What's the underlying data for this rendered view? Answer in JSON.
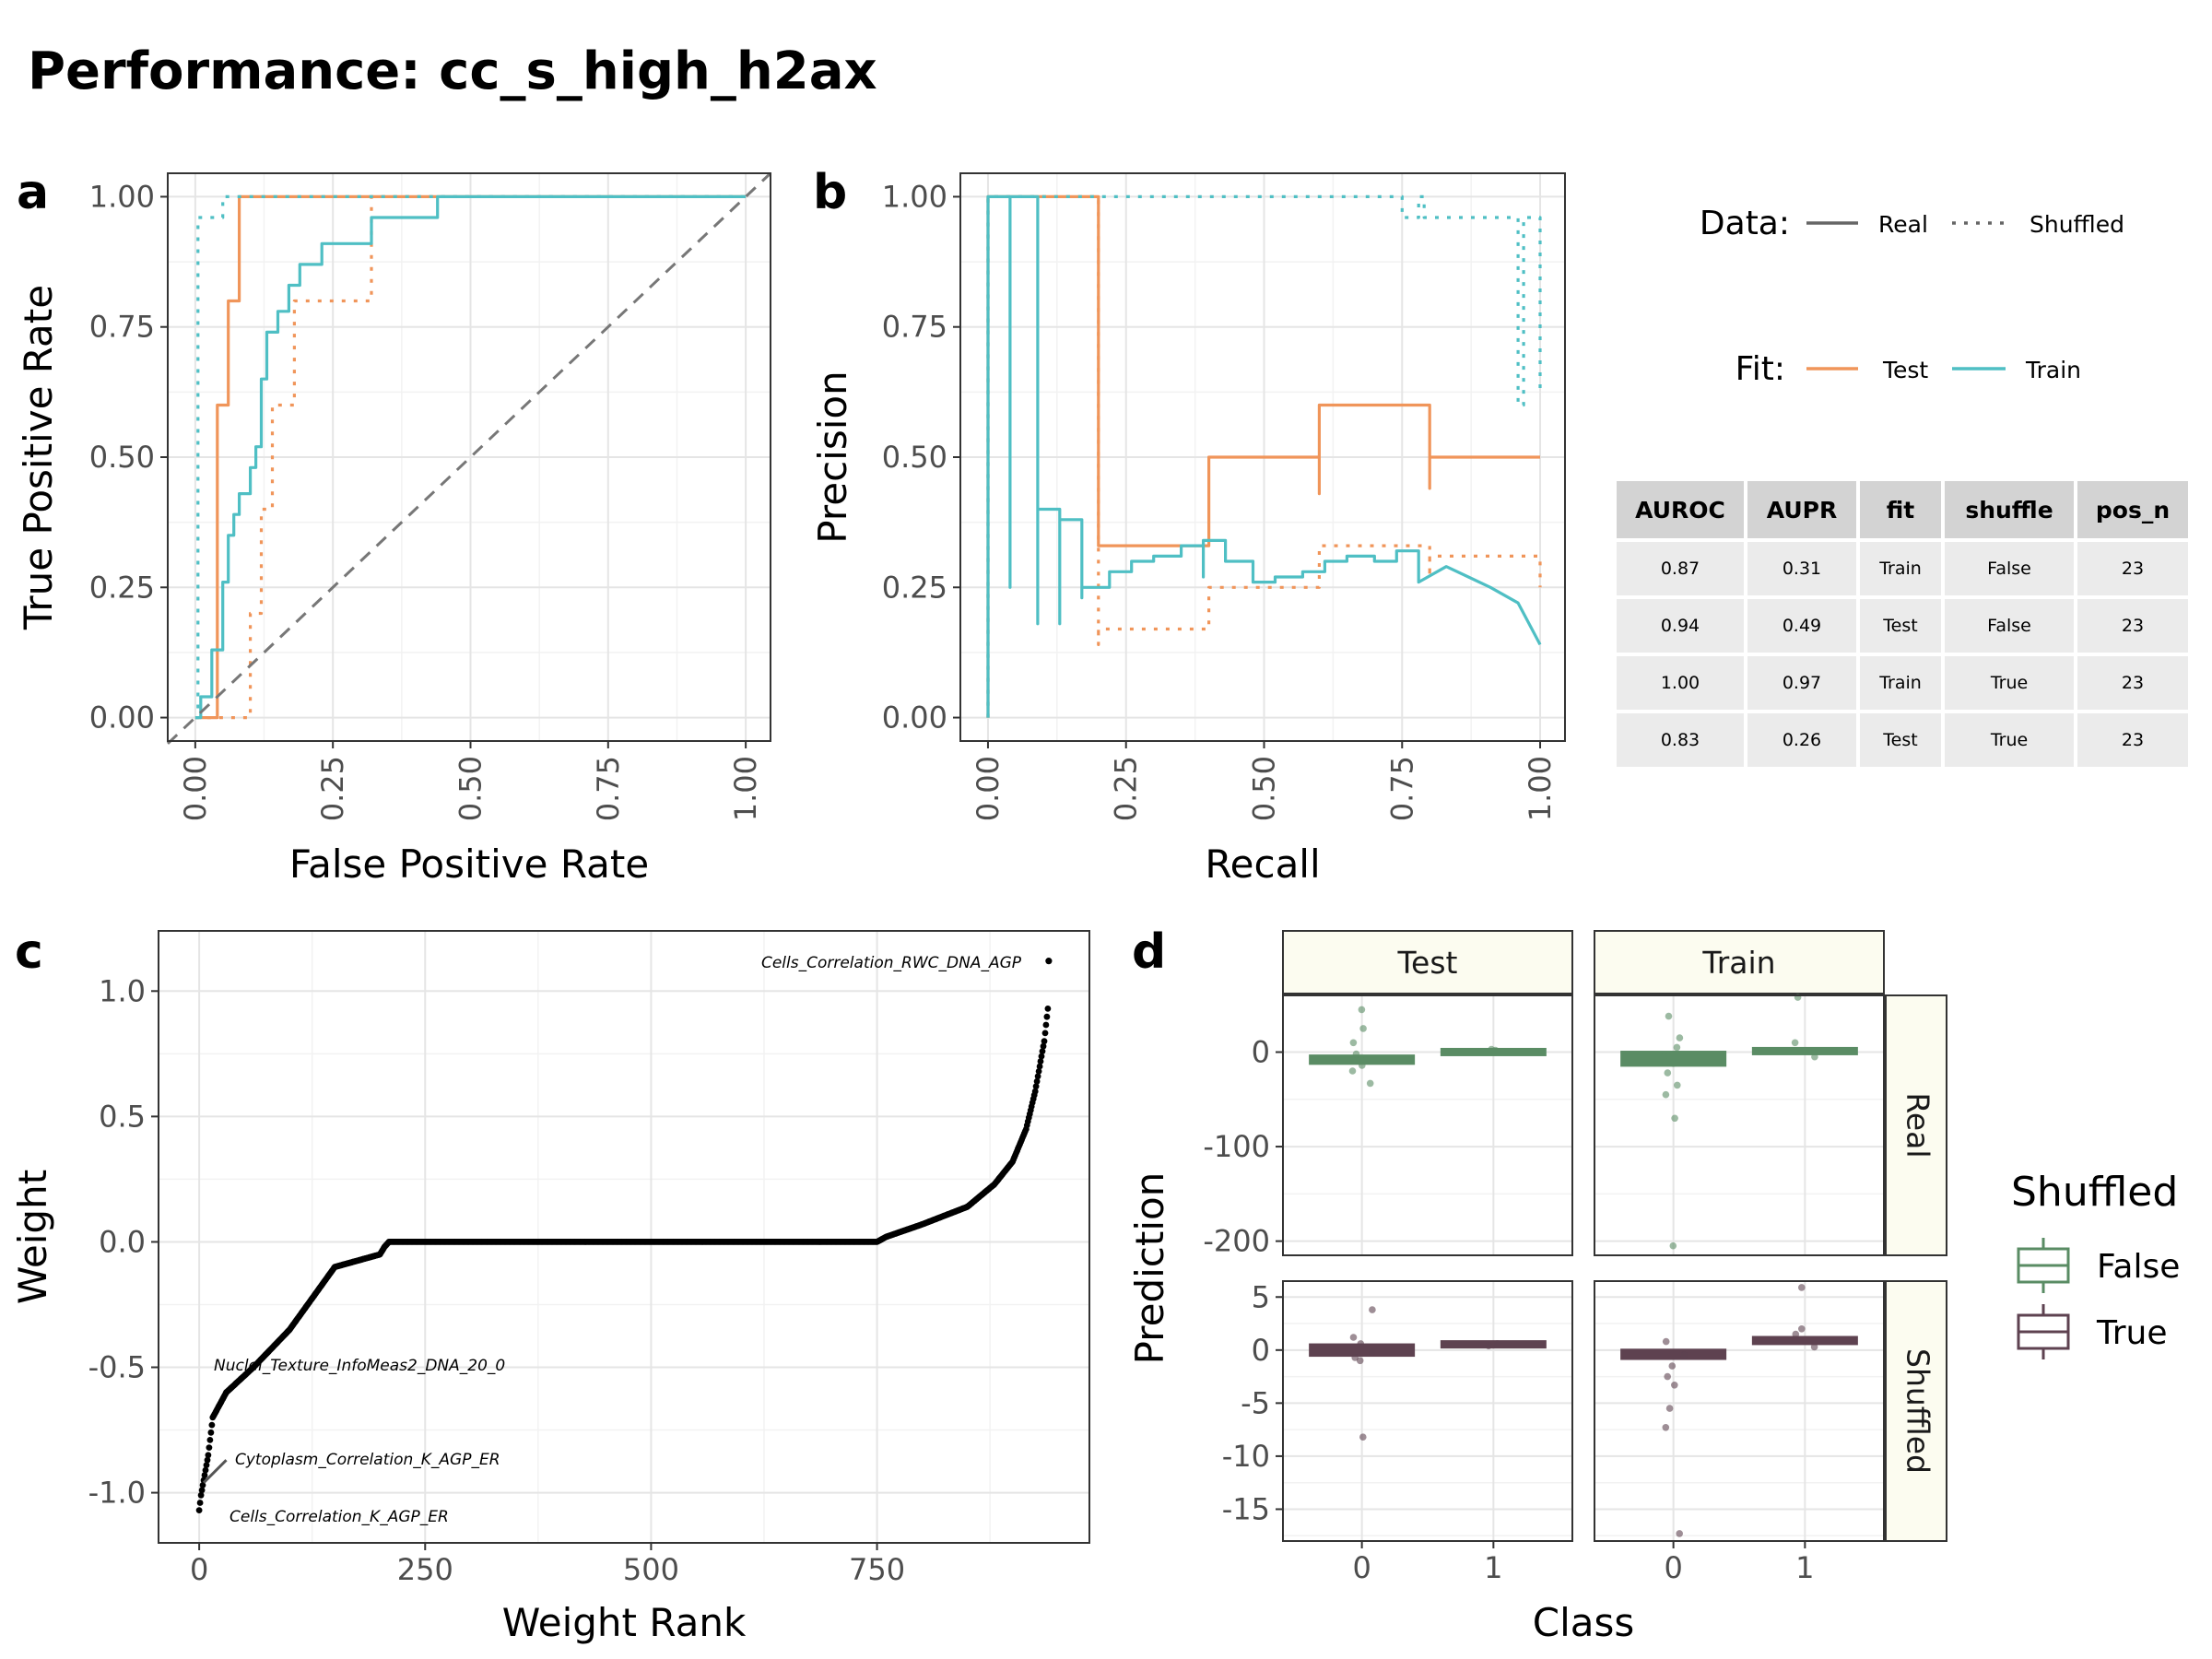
{
  "title": "Performance: cc_s_high_h2ax",
  "colors": {
    "test": "#f0955a",
    "train": "#4fbfc4",
    "false_box": "#5a8c64",
    "true_box": "#5e4250",
    "diag": "#777777"
  },
  "panel_letters": [
    "a",
    "b",
    "c",
    "d"
  ],
  "chart_data": [
    {
      "type": "line",
      "panel": "a",
      "xlabel": "False Positive Rate",
      "ylabel": "True Positive Rate",
      "xlim": [
        0,
        1
      ],
      "ylim": [
        0,
        1
      ],
      "x_ticks": [
        "0.00",
        "0.25",
        "0.50",
        "0.75",
        "1.00"
      ],
      "y_ticks": [
        "0.00",
        "0.25",
        "0.50",
        "0.75",
        "1.00"
      ],
      "series": [
        {
          "name": "Test",
          "data": "Real",
          "x": [
            0,
            0.04,
            0.04,
            0.06,
            0.06,
            0.08,
            0.08,
            0.1,
            0.1,
            1
          ],
          "y": [
            0,
            0,
            0.6,
            0.6,
            0.8,
            0.8,
            1,
            1,
            1,
            1
          ]
        },
        {
          "name": "Test",
          "data": "Shuffled",
          "x": [
            0,
            0.1,
            0.1,
            0.12,
            0.12,
            0.14,
            0.14,
            0.18,
            0.18,
            0.2,
            0.2,
            0.32,
            0.32,
            1
          ],
          "y": [
            0,
            0,
            0.2,
            0.2,
            0.4,
            0.4,
            0.6,
            0.6,
            0.8,
            0.8,
            0.8,
            0.8,
            1,
            1
          ]
        },
        {
          "name": "Train",
          "data": "Real",
          "x": [
            0,
            0.01,
            0.01,
            0.03,
            0.03,
            0.05,
            0.05,
            0.06,
            0.06,
            0.07,
            0.07,
            0.08,
            0.08,
            0.1,
            0.1,
            0.11,
            0.11,
            0.12,
            0.12,
            0.13,
            0.13,
            0.15,
            0.15,
            0.17,
            0.17,
            0.19,
            0.19,
            0.21,
            0.21,
            0.23,
            0.23,
            0.26,
            0.26,
            0.32,
            0.32,
            0.44,
            0.44,
            0.54,
            0.54,
            1
          ],
          "y": [
            0,
            0,
            0.04,
            0.04,
            0.13,
            0.13,
            0.26,
            0.26,
            0.35,
            0.35,
            0.39,
            0.39,
            0.43,
            0.43,
            0.48,
            0.48,
            0.52,
            0.52,
            0.65,
            0.65,
            0.74,
            0.74,
            0.78,
            0.78,
            0.83,
            0.83,
            0.87,
            0.87,
            0.87,
            0.87,
            0.91,
            0.91,
            0.91,
            0.91,
            0.96,
            0.96,
            1,
            1,
            1,
            1
          ]
        },
        {
          "name": "Train",
          "data": "Shuffled",
          "x": [
            0,
            0,
            0.005,
            0.005,
            0.05,
            0.05,
            0.08,
            0.08,
            1
          ],
          "y": [
            0,
            0,
            0,
            0.96,
            0.96,
            1,
            1,
            1,
            1
          ]
        },
        {
          "name": "Diagonal",
          "x": [
            0,
            1
          ],
          "y": [
            0,
            1
          ]
        }
      ]
    },
    {
      "type": "line",
      "panel": "b",
      "xlabel": "Recall",
      "ylabel": "Precision",
      "xlim": [
        0,
        1
      ],
      "ylim": [
        0,
        1
      ],
      "x_ticks": [
        "0.00",
        "0.25",
        "0.50",
        "0.75",
        "1.00"
      ],
      "y_ticks": [
        "0.00",
        "0.25",
        "0.50",
        "0.75",
        "1.00"
      ],
      "series": [
        {
          "name": "Test",
          "data": "Real",
          "x": [
            0,
            0,
            0.2,
            0.2,
            0.4,
            0.4,
            0.6,
            0.6,
            0.6,
            0.8,
            0.8,
            0.8,
            1
          ],
          "y": [
            0,
            1,
            1,
            0.33,
            0.33,
            0.5,
            0.5,
            0.43,
            0.6,
            0.6,
            0.44,
            0.5,
            0.5
          ]
        },
        {
          "name": "Test",
          "data": "Shuffled",
          "x": [
            0,
            0,
            0.2,
            0.2,
            0.2,
            0.4,
            0.4,
            0.4,
            0.6,
            0.6,
            0.8,
            0.8,
            0.8,
            1,
            1
          ],
          "y": [
            0,
            1,
            1,
            0.14,
            0.17,
            0.17,
            0.22,
            0.25,
            0.25,
            0.33,
            0.33,
            0.27,
            0.31,
            0.31,
            0.25
          ]
        },
        {
          "name": "Train",
          "data": "Real",
          "x": [
            0,
            0,
            0.04,
            0.04,
            0.04,
            0.09,
            0.09,
            0.09,
            0.13,
            0.13,
            0.13,
            0.17,
            0.17,
            0.17,
            0.22,
            0.22,
            0.26,
            0.26,
            0.3,
            0.3,
            0.35,
            0.35,
            0.39,
            0.39,
            0.39,
            0.43,
            0.43,
            0.48,
            0.48,
            0.52,
            0.52,
            0.57,
            0.57,
            0.61,
            0.61,
            0.65,
            0.65,
            0.7,
            0.7,
            0.74,
            0.74,
            0.78,
            0.78,
            0.83,
            0.83,
            0.87,
            0.87,
            0.91,
            0.91,
            0.96,
            0.96,
            1
          ],
          "y": [
            0,
            1,
            1,
            0.25,
            1,
            1,
            0.18,
            0.4,
            0.4,
            0.18,
            0.38,
            0.38,
            0.23,
            0.25,
            0.25,
            0.28,
            0.28,
            0.3,
            0.3,
            0.31,
            0.31,
            0.33,
            0.33,
            0.27,
            0.34,
            0.34,
            0.3,
            0.3,
            0.26,
            0.26,
            0.27,
            0.27,
            0.28,
            0.28,
            0.3,
            0.3,
            0.31,
            0.31,
            0.3,
            0.3,
            0.32,
            0.32,
            0.26,
            0.29,
            0.29,
            0.27,
            0.27,
            0.25,
            0.25,
            0.22,
            0.22,
            0.14
          ]
        },
        {
          "name": "Train",
          "data": "Shuffled",
          "x": [
            0,
            0,
            0.75,
            0.75,
            0.78,
            0.78,
            0.79,
            0.79,
            0.96,
            0.96,
            0.97,
            0.97,
            1,
            1
          ],
          "y": [
            0,
            1,
            1,
            0.96,
            0.96,
            1,
            1,
            0.96,
            0.96,
            0.6,
            0.6,
            0.96,
            0.96,
            0.62
          ]
        }
      ]
    },
    {
      "type": "scatter",
      "panel": "c",
      "xlabel": "Weight Rank",
      "ylabel": "Weight",
      "xlim": [
        -45,
        985
      ],
      "ylim": [
        -1.2,
        1.24
      ],
      "x_ticks": [
        "0",
        "250",
        "500",
        "750"
      ],
      "y_ticks": [
        "-1.0",
        "-0.5",
        "0.0",
        "0.5",
        "1.0"
      ],
      "curve_anchors": {
        "x": [
          0,
          2,
          5,
          10,
          15,
          30,
          60,
          100,
          150,
          200,
          205,
          210,
          220,
          750,
          760,
          800,
          850,
          880,
          900,
          915,
          925,
          935,
          939
        ],
        "y": [
          -1.07,
          -1.01,
          -0.95,
          -0.85,
          -0.7,
          -0.6,
          -0.5,
          -0.35,
          -0.1,
          -0.05,
          -0.02,
          0,
          0,
          0,
          0.02,
          0.07,
          0.14,
          0.23,
          0.32,
          0.45,
          0.6,
          0.8,
          0.93
        ]
      },
      "extra_points": [
        {
          "x": 940,
          "y": 1.12
        }
      ],
      "annotations": [
        {
          "text": "Cells_Correlation_RWC_DNA_AGP",
          "x": 925,
          "y": 1.12
        },
        {
          "text": "Nuclei_Texture_InfoMeas2_DNA_20_0",
          "x": 10,
          "y": -0.48
        },
        {
          "text": "Cytoplasm_Correlation_K_AGP_ER",
          "x": 5,
          "y": -0.85
        },
        {
          "text": "Cells_Correlation_K_AGP_ER",
          "x": 0,
          "y": -1.07
        }
      ]
    },
    {
      "type": "box",
      "panel": "d",
      "xlabel": "Class",
      "ylabel": "Prediction",
      "categories": [
        "0",
        "1"
      ],
      "col_facets": [
        "Test",
        "Train"
      ],
      "row_facets": [
        "Real",
        "Shuffled"
      ],
      "real_ticks": [
        "0",
        "-100",
        "-200"
      ],
      "shuffled_ticks": [
        "5",
        "0",
        "-5",
        "-10",
        "-15"
      ],
      "legend_title": "Shuffled",
      "legend_items": [
        "False",
        "True"
      ],
      "facets": [
        {
          "row": "Real",
          "col": "Test",
          "ylim": [
            -215,
            60
          ],
          "boxes": [
            {
              "cls": "0",
              "median": -8,
              "q1": -12,
              "q3": -4
            },
            {
              "cls": "1",
              "median": 2,
              "q1": 0,
              "q3": 3
            }
          ],
          "points": [
            [
              0,
              45
            ],
            [
              0,
              25
            ],
            [
              0,
              10
            ],
            [
              0,
              -2
            ],
            [
              0,
              -8
            ],
            [
              0,
              -14
            ],
            [
              0,
              -20
            ],
            [
              0,
              -33
            ],
            [
              1,
              2
            ],
            [
              1,
              3
            ]
          ]
        },
        {
          "row": "Real",
          "col": "Train",
          "ylim": [
            -215,
            60
          ],
          "boxes": [
            {
              "cls": "0",
              "median": -8,
              "q1": -14,
              "q3": 0
            },
            {
              "cls": "1",
              "median": 1,
              "q1": -1,
              "q3": 4
            }
          ],
          "points": [
            [
              0,
              38
            ],
            [
              0,
              15
            ],
            [
              0,
              5
            ],
            [
              0,
              -5
            ],
            [
              0,
              -12
            ],
            [
              0,
              -22
            ],
            [
              0,
              -35
            ],
            [
              0,
              -45
            ],
            [
              0,
              -70
            ],
            [
              0,
              -205
            ],
            [
              1,
              58
            ],
            [
              1,
              10
            ],
            [
              1,
              -5
            ]
          ]
        },
        {
          "row": "Shuffled",
          "col": "Test",
          "ylim": [
            -18,
            6.5
          ],
          "boxes": [
            {
              "cls": "0",
              "median": -0.1,
              "q1": -0.5,
              "q3": 0.5
            },
            {
              "cls": "1",
              "median": 0.5,
              "q1": 0.3,
              "q3": 0.8
            }
          ],
          "points": [
            [
              0,
              3.8
            ],
            [
              0,
              1.2
            ],
            [
              0,
              0.6
            ],
            [
              0,
              -0.2
            ],
            [
              0,
              -0.7
            ],
            [
              0,
              -1
            ],
            [
              0,
              -8.2
            ],
            [
              1,
              0.6
            ],
            [
              1,
              0.4
            ]
          ]
        },
        {
          "row": "Shuffled",
          "col": "Train",
          "ylim": [
            -18,
            6.5
          ],
          "boxes": [
            {
              "cls": "0",
              "median": -0.4,
              "q1": -0.8,
              "q3": 0
            },
            {
              "cls": "1",
              "median": 0.9,
              "q1": 0.6,
              "q3": 1.2
            }
          ],
          "points": [
            [
              0,
              0.8
            ],
            [
              0,
              -0.5
            ],
            [
              0,
              -1.5
            ],
            [
              0,
              -2.5
            ],
            [
              0,
              -3.3
            ],
            [
              0,
              -5.5
            ],
            [
              0,
              -7.3
            ],
            [
              0,
              -17.3
            ],
            [
              1,
              5.9
            ],
            [
              1,
              2
            ],
            [
              1,
              1.5
            ],
            [
              1,
              0.3
            ]
          ]
        }
      ]
    }
  ],
  "legend": {
    "data_title": "Data:",
    "data_real": "Real",
    "data_shuffled": "Shuffled",
    "fit_title": "Fit:",
    "fit_test": "Test",
    "fit_train": "Train"
  },
  "table": {
    "headers": [
      "AUROC",
      "AUPR",
      "fit",
      "shuffle",
      "pos_n"
    ],
    "rows": [
      [
        "0.87",
        "0.31",
        "Train",
        "False",
        "23"
      ],
      [
        "0.94",
        "0.49",
        "Test",
        "False",
        "23"
      ],
      [
        "1.00",
        "0.97",
        "Train",
        "True",
        "23"
      ],
      [
        "0.83",
        "0.26",
        "Test",
        "True",
        "23"
      ]
    ]
  }
}
